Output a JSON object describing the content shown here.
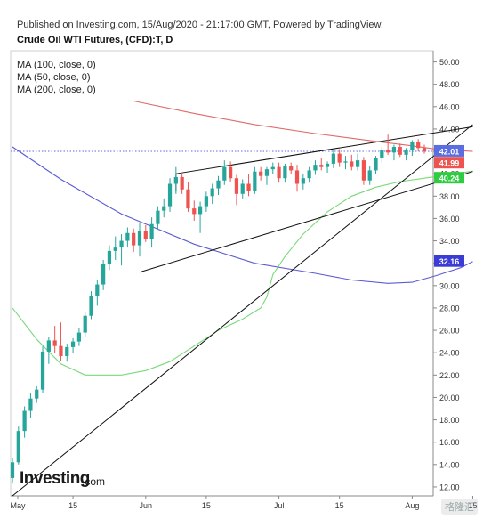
{
  "header": {
    "published": "Published on Investing.com, 15/Aug/2020 - 21:17:00 GMT, Powered by TradingView.",
    "title": "Crude Oil WTI Futures, (CFD):T, D"
  },
  "indicators": [
    {
      "label": "MA (100, close, 0)",
      "color": "#5b5bd6"
    },
    {
      "label": "MA (50, close, 0)",
      "color": "#7ad97a"
    },
    {
      "label": "MA (200, close, 0)",
      "color": "#e06a6a"
    }
  ],
  "watermark": {
    "brand": "Investing",
    "suffix": ".com",
    "corner": "格隆汇"
  },
  "colors": {
    "up": "#26a69a",
    "down": "#ef5350",
    "ma100": "#5b5bd6",
    "ma50": "#7ad97a",
    "ma200": "#e06a6a",
    "trend": "#111111"
  },
  "chart_data": {
    "type": "candlestick",
    "x_ticks": [
      "May",
      "15",
      "Jun",
      "15",
      "Jul",
      "15",
      "Aug",
      "15"
    ],
    "y_ticks": [
      "50.00",
      "48.00",
      "46.00",
      "44.00",
      "42.00",
      "40.00",
      "38.00",
      "36.00",
      "34.00",
      "32.00",
      "30.00",
      "28.00",
      "26.00",
      "24.00",
      "22.00",
      "20.00",
      "18.00",
      "16.00",
      "14.00",
      "12.00"
    ],
    "ylim": [
      11.2,
      51
    ],
    "price_labels": [
      {
        "text": "42.01",
        "value": 42.01,
        "color": "#5b6ee1"
      },
      {
        "text": "41.99",
        "value": 41.99,
        "color": "#ef5350"
      },
      {
        "text": "40.24",
        "value": 40.24,
        "color": "#2ecc40"
      },
      {
        "text": "32.16",
        "value": 32.16,
        "color": "#3b3bd6"
      }
    ],
    "reference_line": 42.01,
    "candles": [
      [
        12.8,
        14.6,
        12.3,
        14.2
      ],
      [
        14.2,
        17.4,
        14.0,
        17.0
      ],
      [
        17.0,
        19.2,
        16.4,
        18.8
      ],
      [
        18.8,
        20.4,
        18.2,
        19.9
      ],
      [
        19.9,
        21.0,
        19.5,
        20.7
      ],
      [
        20.7,
        24.6,
        20.4,
        24.1
      ],
      [
        24.1,
        25.4,
        23.0,
        25.1
      ],
      [
        25.1,
        26.4,
        24.0,
        24.6
      ],
      [
        24.6,
        26.7,
        23.3,
        23.7
      ],
      [
        23.7,
        24.8,
        23.2,
        24.5
      ],
      [
        24.5,
        25.3,
        24.0,
        25.0
      ],
      [
        25.0,
        26.2,
        24.6,
        25.8
      ],
      [
        25.8,
        27.6,
        25.4,
        27.3
      ],
      [
        27.3,
        29.5,
        27.0,
        29.1
      ],
      [
        29.1,
        30.5,
        28.2,
        30.1
      ],
      [
        30.1,
        32.3,
        29.6,
        31.9
      ],
      [
        31.9,
        33.6,
        31.4,
        33.1
      ],
      [
        33.1,
        34.4,
        32.3,
        33.4
      ],
      [
        33.4,
        34.6,
        31.8,
        34.0
      ],
      [
        34.0,
        35.2,
        33.4,
        34.7
      ],
      [
        34.7,
        35.1,
        33.0,
        33.6
      ],
      [
        33.6,
        35.6,
        32.6,
        34.9
      ],
      [
        34.9,
        35.4,
        33.9,
        34.2
      ],
      [
        34.2,
        36.1,
        33.4,
        35.5
      ],
      [
        35.5,
        37.1,
        35.0,
        36.7
      ],
      [
        36.7,
        37.8,
        36.1,
        37.1
      ],
      [
        37.1,
        39.6,
        36.6,
        39.1
      ],
      [
        39.1,
        40.6,
        38.2,
        39.7
      ],
      [
        39.7,
        40.1,
        38.2,
        38.6
      ],
      [
        38.6,
        39.3,
        36.6,
        36.9
      ],
      [
        36.9,
        37.6,
        35.8,
        36.4
      ],
      [
        36.4,
        37.5,
        34.7,
        37.1
      ],
      [
        37.1,
        38.4,
        36.6,
        38.0
      ],
      [
        38.0,
        39.1,
        37.3,
        38.7
      ],
      [
        38.7,
        39.8,
        38.1,
        39.4
      ],
      [
        39.4,
        41.2,
        39.0,
        40.6
      ],
      [
        40.6,
        41.1,
        39.3,
        39.6
      ],
      [
        39.6,
        39.9,
        37.2,
        38.2
      ],
      [
        38.2,
        39.5,
        37.8,
        39.1
      ],
      [
        39.1,
        40.0,
        38.0,
        38.5
      ],
      [
        38.5,
        40.6,
        38.2,
        40.2
      ],
      [
        40.2,
        40.6,
        39.4,
        39.8
      ],
      [
        39.8,
        40.6,
        39.0,
        40.4
      ],
      [
        40.4,
        41.0,
        40.0,
        40.6
      ],
      [
        40.6,
        41.0,
        39.2,
        39.6
      ],
      [
        39.6,
        40.9,
        39.2,
        40.7
      ],
      [
        40.7,
        41.0,
        40.0,
        40.3
      ],
      [
        40.3,
        40.8,
        38.4,
        39.1
      ],
      [
        39.1,
        40.0,
        38.6,
        39.6
      ],
      [
        39.6,
        40.6,
        39.2,
        40.3
      ],
      [
        40.3,
        41.2,
        39.9,
        40.8
      ],
      [
        40.8,
        41.4,
        40.3,
        40.6
      ],
      [
        40.6,
        41.1,
        40.1,
        40.9
      ],
      [
        40.9,
        42.2,
        40.5,
        41.8
      ],
      [
        41.8,
        42.2,
        40.6,
        41.0
      ],
      [
        41.0,
        41.6,
        40.4,
        41.1
      ],
      [
        41.1,
        41.7,
        40.3,
        40.6
      ],
      [
        40.6,
        41.8,
        40.3,
        41.2
      ],
      [
        41.2,
        41.5,
        39.0,
        39.4
      ],
      [
        39.4,
        40.7,
        39.0,
        40.3
      ],
      [
        40.3,
        41.6,
        40.0,
        41.4
      ],
      [
        41.4,
        42.4,
        41.0,
        42.1
      ],
      [
        42.1,
        43.5,
        41.7,
        41.9
      ],
      [
        41.9,
        42.6,
        41.2,
        42.4
      ],
      [
        42.4,
        42.7,
        41.5,
        41.7
      ],
      [
        41.7,
        42.3,
        41.2,
        42.1
      ],
      [
        42.1,
        43.0,
        41.6,
        42.8
      ],
      [
        42.8,
        43.1,
        42.0,
        42.3
      ],
      [
        42.3,
        42.6,
        41.8,
        41.99
      ]
    ],
    "ma100": [
      [
        0,
        42.4
      ],
      [
        8,
        39.5
      ],
      [
        18,
        36.4
      ],
      [
        30,
        33.7
      ],
      [
        40,
        32.0
      ],
      [
        50,
        31.1
      ],
      [
        56,
        30.5
      ],
      [
        62,
        30.2
      ],
      [
        66,
        30.3
      ],
      [
        70,
        30.9
      ],
      [
        74,
        31.6
      ],
      [
        76,
        32.16
      ]
    ],
    "ma50": [
      [
        0,
        28.0
      ],
      [
        4,
        25.2
      ],
      [
        8,
        23.0
      ],
      [
        12,
        22.0
      ],
      [
        18,
        22.0
      ],
      [
        22,
        22.4
      ],
      [
        26,
        23.2
      ],
      [
        30,
        24.6
      ],
      [
        34,
        26.0
      ],
      [
        38,
        27.0
      ],
      [
        41,
        28.0
      ],
      [
        42,
        29.0
      ],
      [
        43,
        31.0
      ],
      [
        45,
        32.6
      ],
      [
        48,
        34.6
      ],
      [
        52,
        36.6
      ],
      [
        56,
        38.0
      ],
      [
        60,
        38.8
      ],
      [
        64,
        39.3
      ],
      [
        68,
        39.6
      ],
      [
        72,
        39.9
      ],
      [
        76,
        40.24
      ]
    ],
    "ma200": [
      [
        20,
        46.5
      ],
      [
        30,
        45.4
      ],
      [
        40,
        44.4
      ],
      [
        50,
        43.6
      ],
      [
        60,
        42.9
      ],
      [
        66,
        42.5
      ],
      [
        70,
        42.2
      ],
      [
        76,
        42.0
      ]
    ],
    "trendlines": [
      {
        "name": "wedge-upper",
        "from": [
          27,
          40.0
        ],
        "to": [
          76,
          44.2
        ]
      },
      {
        "name": "wedge-lower",
        "from": [
          21,
          31.2
        ],
        "to": [
          76,
          40.2
        ]
      },
      {
        "name": "long-support",
        "from": [
          0,
          11.2
        ],
        "to": [
          76,
          44.4
        ]
      },
      {
        "name": "wedge-left-edge",
        "from": [
          27,
          40.0
        ],
        "to": [
          27,
          38.5
        ]
      }
    ]
  }
}
